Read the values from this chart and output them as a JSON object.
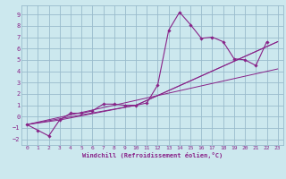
{
  "title": "",
  "xlabel": "Windchill (Refroidissement éolien,°C)",
  "background_color": "#cce8ee",
  "grid_color": "#99bbcc",
  "line_color": "#882288",
  "xlim": [
    -0.5,
    23.5
  ],
  "ylim": [
    -2.5,
    9.8
  ],
  "xticks": [
    0,
    1,
    2,
    3,
    4,
    5,
    6,
    7,
    8,
    9,
    10,
    11,
    12,
    13,
    14,
    15,
    16,
    17,
    18,
    19,
    20,
    21,
    22,
    23
  ],
  "yticks": [
    -2,
    -1,
    0,
    1,
    2,
    3,
    4,
    5,
    6,
    7,
    8,
    9
  ],
  "main_x": [
    0,
    1,
    2,
    3,
    4,
    5,
    6,
    7,
    8,
    9,
    10,
    11,
    12,
    13,
    14,
    15,
    16,
    17,
    18,
    19,
    20,
    21,
    22
  ],
  "main_y": [
    -0.7,
    -1.2,
    -1.7,
    -0.3,
    0.3,
    0.3,
    0.5,
    1.1,
    1.1,
    1.0,
    1.0,
    1.2,
    2.8,
    7.6,
    9.2,
    8.1,
    6.9,
    7.0,
    6.6,
    5.1,
    5.0,
    4.5,
    6.6
  ],
  "trend1_x": [
    0,
    3,
    10,
    23
  ],
  "trend1_y": [
    -0.7,
    -0.3,
    1.0,
    6.6
  ],
  "trend2_x": [
    0,
    10,
    23
  ],
  "trend2_y": [
    -0.7,
    1.0,
    6.6
  ],
  "trend3_x": [
    0,
    23
  ],
  "trend3_y": [
    -0.7,
    4.2
  ]
}
